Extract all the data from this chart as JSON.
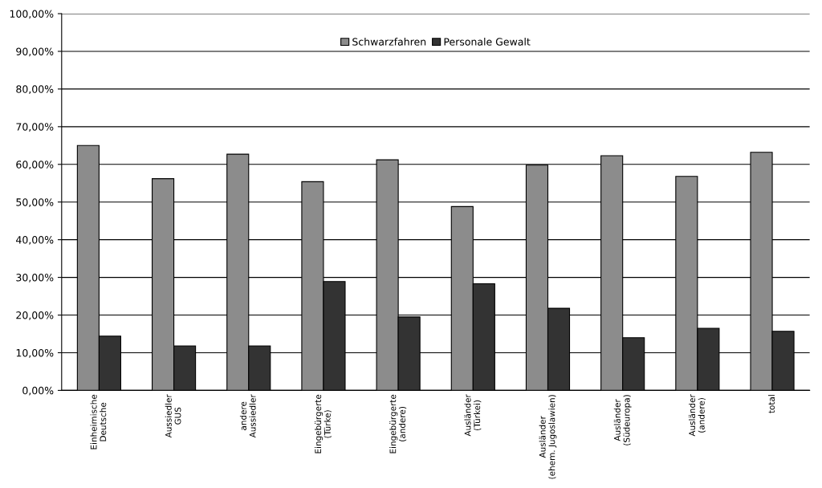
{
  "chart_data": {
    "type": "bar",
    "categories": [
      "Einheimische\nDeutsche",
      "Aussiedler\nGUS",
      "andere\nAussiedler",
      "Eingebürgerte\n(Türke)",
      "Eingebürgerte\n(andere)",
      "Ausländer\n(Türkei)",
      "Ausländer\n(ehem. Jugoslawien)",
      "Ausländer\n(Südeuropa)",
      "Ausländer\n(andere)",
      "total"
    ],
    "series": [
      {
        "name": "Schwarzfahren",
        "color": "#8c8c8c",
        "values": [
          65.0,
          56.2,
          62.7,
          55.4,
          61.2,
          48.8,
          59.8,
          62.3,
          56.8,
          63.2
        ]
      },
      {
        "name": "Personale Gewalt",
        "color": "#333333",
        "values": [
          14.4,
          11.8,
          11.8,
          28.9,
          19.5,
          28.3,
          21.8,
          14.0,
          16.5,
          15.7
        ]
      }
    ],
    "ylim": [
      0,
      100
    ],
    "yticks": [
      {
        "value": 0,
        "label": "0,00%"
      },
      {
        "value": 10,
        "label": "10,00%"
      },
      {
        "value": 20,
        "label": "20,00%"
      },
      {
        "value": 30,
        "label": "30,00%"
      },
      {
        "value": 40,
        "label": "40,00%"
      },
      {
        "value": 50,
        "label": "50,00%"
      },
      {
        "value": 60,
        "label": "60,00%"
      },
      {
        "value": 70,
        "label": "70,00%"
      },
      {
        "value": 80,
        "label": "80,00%"
      },
      {
        "value": 90,
        "label": "90,00%"
      },
      {
        "value": 100,
        "label": "100,00%"
      }
    ],
    "grid": "y",
    "legend": "top"
  }
}
